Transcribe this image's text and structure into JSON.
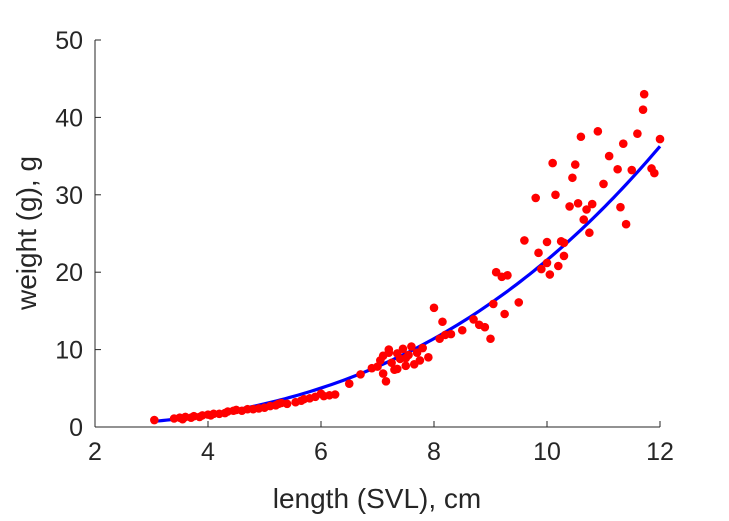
{
  "chart_data": {
    "type": "scatter",
    "xlabel": "length (SVL), cm",
    "ylabel": "weight (g), g",
    "xlim": [
      2,
      12
    ],
    "ylim": [
      0,
      50
    ],
    "xticks": [
      2,
      4,
      6,
      8,
      10,
      12
    ],
    "yticks": [
      0,
      10,
      20,
      30,
      40,
      50
    ],
    "grid": false,
    "legend": "none",
    "colors": {
      "points": "#ff0000",
      "fit": "#0000ff",
      "axis": "#262626"
    },
    "series": [
      {
        "type": "scatter",
        "points": [
          [
            3.05,
            0.9
          ],
          [
            3.4,
            1.1
          ],
          [
            3.5,
            1.2
          ],
          [
            3.55,
            1.0
          ],
          [
            3.6,
            1.3
          ],
          [
            3.7,
            1.2
          ],
          [
            3.75,
            1.4
          ],
          [
            3.85,
            1.3
          ],
          [
            3.9,
            1.5
          ],
          [
            4.0,
            1.6
          ],
          [
            4.05,
            1.5
          ],
          [
            4.1,
            1.7
          ],
          [
            4.2,
            1.7
          ],
          [
            4.3,
            1.8
          ],
          [
            4.35,
            2.0
          ],
          [
            4.45,
            2.1
          ],
          [
            4.5,
            2.2
          ],
          [
            4.6,
            2.1
          ],
          [
            4.7,
            2.3
          ],
          [
            4.8,
            2.3
          ],
          [
            4.9,
            2.4
          ],
          [
            5.0,
            2.5
          ],
          [
            5.1,
            2.7
          ],
          [
            5.2,
            2.8
          ],
          [
            5.25,
            3.0
          ],
          [
            5.3,
            3.1
          ],
          [
            5.4,
            3.0
          ],
          [
            5.55,
            3.2
          ],
          [
            5.65,
            3.4
          ],
          [
            5.7,
            3.6
          ],
          [
            5.8,
            3.7
          ],
          [
            5.9,
            3.9
          ],
          [
            6.0,
            4.3
          ],
          [
            6.05,
            4.0
          ],
          [
            6.15,
            4.1
          ],
          [
            6.25,
            4.2
          ],
          [
            6.5,
            5.6
          ],
          [
            6.7,
            6.8
          ],
          [
            6.9,
            7.6
          ],
          [
            7.0,
            7.8
          ],
          [
            7.05,
            8.6
          ],
          [
            7.1,
            9.2
          ],
          [
            7.1,
            6.9
          ],
          [
            7.15,
            5.9
          ],
          [
            7.2,
            10.0
          ],
          [
            7.25,
            8.3
          ],
          [
            7.3,
            7.4
          ],
          [
            7.35,
            9.5
          ],
          [
            7.4,
            8.8
          ],
          [
            7.45,
            10.1
          ],
          [
            7.5,
            7.9
          ],
          [
            7.55,
            9.3
          ],
          [
            7.6,
            10.4
          ],
          [
            7.65,
            8.1
          ],
          [
            7.7,
            9.6
          ],
          [
            7.75,
            8.6
          ],
          [
            7.8,
            10.2
          ],
          [
            7.9,
            9.0
          ],
          [
            8.0,
            15.4
          ],
          [
            8.1,
            11.4
          ],
          [
            8.15,
            13.6
          ],
          [
            8.3,
            12.0
          ],
          [
            8.5,
            12.5
          ],
          [
            8.7,
            13.9
          ],
          [
            8.8,
            13.2
          ],
          [
            8.9,
            12.9
          ],
          [
            9.0,
            11.4
          ],
          [
            9.05,
            15.9
          ],
          [
            9.1,
            20.0
          ],
          [
            9.2,
            19.4
          ],
          [
            9.25,
            14.6
          ],
          [
            9.3,
            19.6
          ],
          [
            9.5,
            16.1
          ],
          [
            9.6,
            24.1
          ],
          [
            9.8,
            29.6
          ],
          [
            9.85,
            22.5
          ],
          [
            9.9,
            20.4
          ],
          [
            10.0,
            23.9
          ],
          [
            10.0,
            21.2
          ],
          [
            10.05,
            19.7
          ],
          [
            10.1,
            34.1
          ],
          [
            10.15,
            30.0
          ],
          [
            10.2,
            20.8
          ],
          [
            10.25,
            24.0
          ],
          [
            10.3,
            22.1
          ],
          [
            10.4,
            28.5
          ],
          [
            10.45,
            32.2
          ],
          [
            10.5,
            33.9
          ],
          [
            10.6,
            37.5
          ],
          [
            10.65,
            26.8
          ],
          [
            10.7,
            28.1
          ],
          [
            10.75,
            25.1
          ],
          [
            10.8,
            28.8
          ],
          [
            10.9,
            38.2
          ],
          [
            11.0,
            31.4
          ],
          [
            11.1,
            35.0
          ],
          [
            11.25,
            33.3
          ],
          [
            11.3,
            28.4
          ],
          [
            11.35,
            36.6
          ],
          [
            11.4,
            26.2
          ],
          [
            11.5,
            33.2
          ],
          [
            11.6,
            37.9
          ],
          [
            11.7,
            41.0
          ],
          [
            11.72,
            43.0
          ],
          [
            11.85,
            33.4
          ],
          [
            11.9,
            32.8
          ],
          [
            12.0,
            37.2
          ],
          [
            10.3,
            23.8
          ],
          [
            10.55,
            28.9
          ],
          [
            7.2,
            9.6
          ],
          [
            7.35,
            7.5
          ],
          [
            7.5,
            8.9
          ],
          [
            8.2,
            11.9
          ]
        ]
      },
      {
        "type": "line",
        "fit": {
          "a": 0.03047,
          "b": 2.85
        },
        "x_range": [
          3.05,
          12.0
        ]
      }
    ]
  }
}
